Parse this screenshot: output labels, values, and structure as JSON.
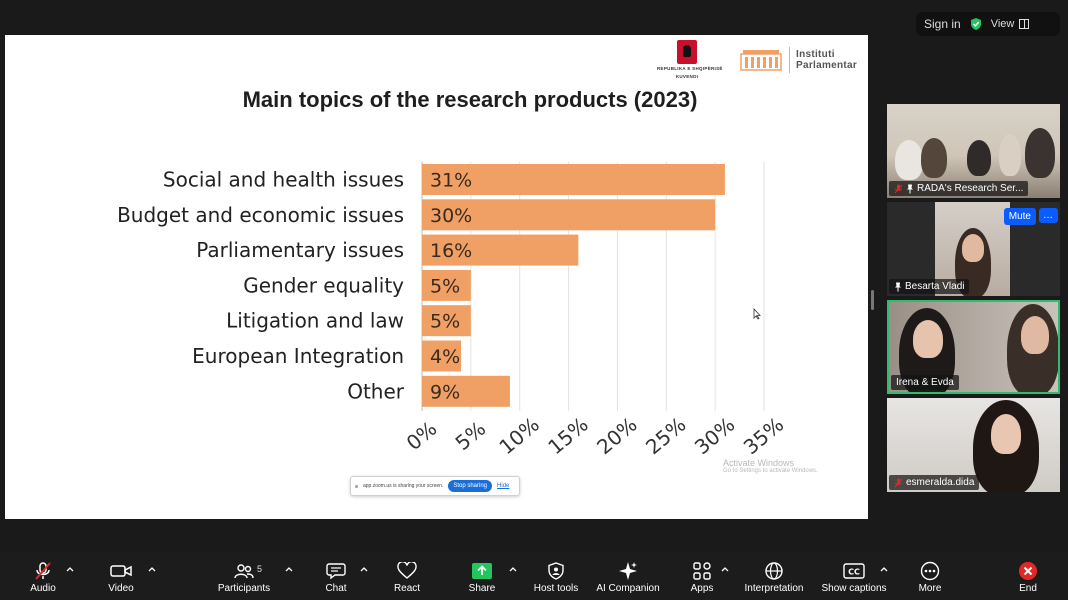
{
  "top": {
    "signin": "Sign in",
    "view": "View"
  },
  "slide": {
    "title": "Main topics of the research products (2023)",
    "logo_republic_line1": "REPUBLIKA E SHQIPËRISË",
    "logo_republic_line2": "KUVENDI",
    "logo_institute_line1": "Instituti",
    "logo_institute_line2": "Parlamentar",
    "watermark_title": "Activate Windows",
    "watermark_sub": "Go to Settings to activate Windows.",
    "share_message": "app.zoom.us is sharing your screen.",
    "share_stop": "Stop sharing",
    "share_hide": "Hide"
  },
  "chart_data": {
    "type": "bar",
    "orientation": "horizontal",
    "title": "Main topics of the research products (2023)",
    "categories": [
      "Social and health issues",
      "Budget and economic issues",
      "Parliamentary issues",
      "Gender equality",
      "Litigation and law",
      "European Integration",
      "Other"
    ],
    "values": [
      31,
      30,
      16,
      5,
      5,
      4,
      9
    ],
    "value_labels": [
      "31%",
      "30%",
      "16%",
      "5%",
      "5%",
      "4%",
      "9%"
    ],
    "xticks": [
      "0%",
      "5%",
      "10%",
      "15%",
      "20%",
      "25%",
      "30%",
      "35%"
    ],
    "xlim": [
      0,
      35
    ],
    "grid": true,
    "bar_color": "#f0a064"
  },
  "participants": [
    {
      "name": "RADA's Research Ser...",
      "muted": true,
      "pinned": true
    },
    {
      "name": "Besarta Vladi",
      "muted": false,
      "pinned": true
    },
    {
      "name": "Irena & Evda",
      "muted": false,
      "pinned": false
    },
    {
      "name": "esmeralda.dida",
      "muted": true,
      "pinned": false
    }
  ],
  "tile_controls": {
    "mute": "Mute",
    "more": "…"
  },
  "toolbar": {
    "audio": "Audio",
    "video": "Video",
    "participants": "Participants",
    "participants_count": "5",
    "chat": "Chat",
    "react": "React",
    "share": "Share",
    "host_tools": "Host tools",
    "ai_companion": "AI Companion",
    "apps": "Apps",
    "interpretation": "Interpretation",
    "captions": "Show captions",
    "more": "More",
    "end": "End"
  },
  "colors": {
    "accent": "#0b5cff",
    "share_green": "#22c55e",
    "end_red": "#e02828",
    "active_border": "#2fbd6c"
  }
}
